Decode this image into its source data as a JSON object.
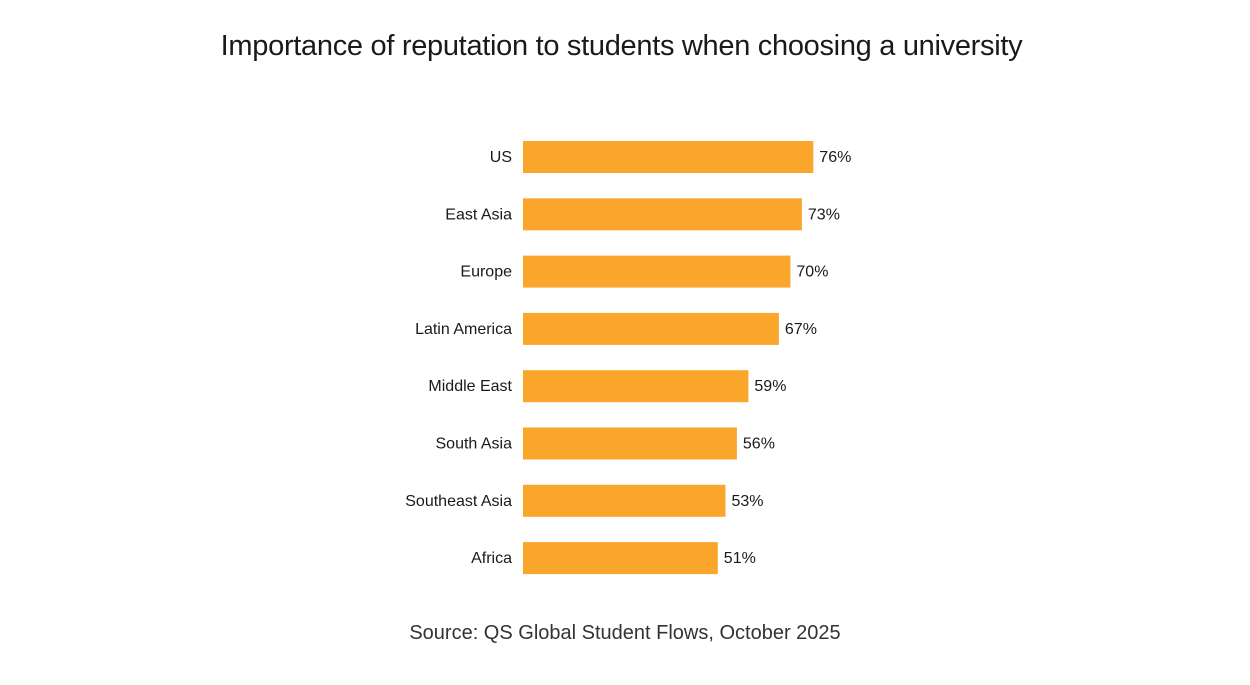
{
  "chart_data": {
    "type": "bar",
    "orientation": "horizontal",
    "title": "Importance of reputation to students when choosing a university",
    "categories": [
      "US",
      "East Asia",
      "Europe",
      "Latin America",
      "Middle East",
      "South Asia",
      "Southeast Asia",
      "Africa"
    ],
    "values": [
      76,
      73,
      70,
      67,
      59,
      56,
      53,
      51
    ],
    "value_labels": [
      "76%",
      "73%",
      "70%",
      "67%",
      "59%",
      "56%",
      "53%",
      "51%"
    ],
    "unit": "%",
    "xlabel": "",
    "ylabel": "",
    "xlim": [
      0,
      100
    ],
    "grid": false,
    "legend": "none",
    "bar_color": "#F9A62B",
    "source": "Source: QS Global Student Flows, October 2025"
  }
}
